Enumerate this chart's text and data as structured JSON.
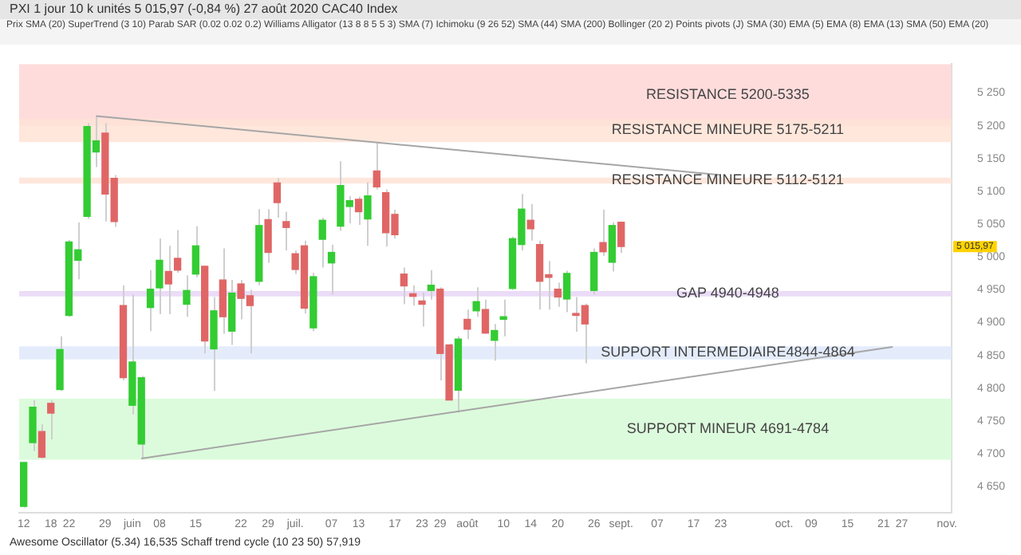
{
  "chart_data": {
    "type": "candlestick",
    "title": "PXI  1 jour  10 k unités  5 015,97 (-0,84 %) 27 août 2020  CAC40 Index",
    "subtitle": "Prix  SMA (20)  SuperTrend (3 10)  Parab SAR (0.02 0.02 0.2)  Williams Alligator (13 8 8 5 5 3)  SMA (7)  Ichimoku (9 26 52)  SMA (44)  SMA (200)  Bollinger (20 2)  Points pivots (J)  SMA (30)  EMA (5)  EMA (8)  EMA (13)  SMA (50)  EMA (20)",
    "annotations": [
      "Awesome Oscillator (5.34) 16,535  Schaff trend cycle (10 23 50) 57,919",
      "5 015,97"
    ],
    "categories": [
      "12",
      null,
      null,
      "18",
      null,
      "22",
      null,
      null,
      null,
      "29",
      null,
      null,
      "juin",
      null,
      null,
      "08",
      null,
      null,
      null,
      "15",
      null,
      null,
      null,
      null,
      "22",
      null,
      null,
      "29",
      null,
      null,
      "juil.",
      null,
      null,
      null,
      "07",
      null,
      null,
      "13",
      null,
      null,
      null,
      "17",
      null,
      null,
      "23",
      null,
      "29",
      null,
      null,
      "août",
      null,
      null,
      null,
      "10",
      null,
      null,
      "14",
      null,
      null,
      "20",
      null,
      null,
      null,
      "26",
      null,
      null,
      "sept.",
      null,
      null,
      null,
      "07",
      null,
      null,
      null,
      "17",
      null,
      null,
      "23",
      null,
      null,
      null,
      null,
      null,
      null,
      "oct.",
      null,
      null,
      "09",
      null,
      null,
      null,
      "15",
      null,
      null,
      null,
      "21",
      null,
      "27",
      null,
      null,
      null,
      null,
      "nov."
    ],
    "series": [
      {
        "type": "candlestick",
        "ohlc": [
          [
            4620,
            4687,
            4618,
            4687
          ],
          [
            4717,
            4782,
            4704,
            4771
          ],
          [
            4734,
            4745,
            4693,
            4695
          ],
          [
            4777,
            4782,
            4722,
            4762
          ],
          [
            4798,
            4879,
            4796,
            4859
          ],
          [
            4911,
            5026,
            4909,
            5023
          ],
          [
            4995,
            5053,
            4966,
            5011
          ],
          [
            5062,
            5204,
            5058,
            5199
          ],
          [
            5160,
            5215,
            5137,
            5177
          ],
          [
            5189,
            5204,
            5054,
            5096
          ],
          [
            5120,
            5125,
            5046,
            5054
          ],
          [
            4926,
            4957,
            4812,
            4816
          ],
          [
            4774,
            4943,
            4760,
            4840
          ],
          [
            4715,
            4819,
            4693,
            4816
          ],
          [
            4923,
            4980,
            4887,
            4951
          ],
          [
            4953,
            5028,
            4913,
            4995
          ],
          [
            4978,
            5017,
            4913,
            4959
          ],
          [
            4998,
            5041,
            4976,
            4980
          ],
          [
            4928,
            4972,
            4909,
            4949
          ],
          [
            4974,
            5047,
            4969,
            5017
          ],
          [
            4986,
            4987,
            4853,
            4872
          ],
          [
            4860,
            4939,
            4796,
            4918
          ],
          [
            4965,
            5013,
            4883,
            4909
          ],
          [
            4887,
            4965,
            4866,
            4945
          ],
          [
            4959,
            4965,
            4905,
            4937
          ],
          [
            4941,
            4950,
            4853,
            4926
          ],
          [
            4963,
            5073,
            4957,
            5048
          ],
          [
            5057,
            5073,
            4991,
            5007
          ],
          [
            5113,
            5120,
            5060,
            5083
          ],
          [
            5054,
            5069,
            5010,
            5045
          ],
          [
            5005,
            5010,
            4974,
            4981
          ],
          [
            5017,
            5025,
            4914,
            4922
          ],
          [
            4892,
            4976,
            4887,
            4970
          ],
          [
            5027,
            5060,
            4984,
            5056
          ],
          [
            4991,
            5019,
            4943,
            5007
          ],
          [
            5047,
            5146,
            5040,
            5109
          ],
          [
            5077,
            5093,
            5051,
            5086
          ],
          [
            5088,
            5092,
            5049,
            5069
          ],
          [
            5058,
            5114,
            5017,
            5093
          ],
          [
            5131,
            5175,
            5103,
            5107
          ],
          [
            5098,
            5103,
            5016,
            5037
          ],
          [
            5065,
            5072,
            5028,
            5034
          ],
          [
            4974,
            4984,
            4928,
            4956
          ],
          [
            4944,
            4957,
            4926,
            4940
          ],
          [
            4933,
            4946,
            4894,
            4928
          ],
          [
            4949,
            4980,
            4935,
            4957
          ],
          [
            4951,
            4954,
            4812,
            4853
          ],
          [
            4866,
            4868,
            4782,
            4782
          ],
          [
            4797,
            4879,
            4763,
            4875
          ],
          [
            4905,
            4920,
            4875,
            4890
          ],
          [
            4918,
            4954,
            4909,
            4932
          ],
          [
            4920,
            4935,
            4883,
            4884
          ],
          [
            4873,
            4898,
            4842,
            4888
          ],
          [
            4905,
            4935,
            4879,
            4909
          ],
          [
            4952,
            5031,
            4950,
            5028
          ],
          [
            5019,
            5096,
            5010,
            5073
          ],
          [
            5056,
            5081,
            5025,
            5043
          ],
          [
            5019,
            5025,
            4920,
            4963
          ],
          [
            4973,
            4994,
            4920,
            4969
          ],
          [
            4951,
            4961,
            4924,
            4939
          ],
          [
            4936,
            4979,
            4916,
            4975
          ],
          [
            4914,
            4939,
            4886,
            4911
          ],
          [
            4926,
            4929,
            4838,
            4898
          ],
          [
            4949,
            5013,
            4943,
            5007
          ],
          [
            5022,
            5072,
            5002,
            5008
          ],
          [
            4992,
            5053,
            4978,
            5048
          ],
          [
            5053,
            5054,
            5006,
            5015.97
          ],
          null,
          null,
          null,
          null,
          null,
          null,
          null,
          null,
          null,
          null,
          null,
          null,
          null,
          null,
          null,
          null,
          null,
          null,
          null,
          null,
          null,
          null,
          null,
          null,
          null,
          null,
          null,
          null,
          null,
          null,
          null,
          null,
          null,
          null,
          null,
          null
        ],
        "colors": [
          "#33cc33",
          "#33cc33",
          "#e06666",
          "#e06666",
          "#33cc33",
          "#33cc33",
          "#33cc33",
          "#33cc33",
          "#33cc33",
          "#e06666",
          "#e06666",
          "#e06666",
          "#33cc33",
          "#33cc33",
          "#33cc33",
          "#33cc33",
          "#e06666",
          "#e06666",
          "#33cc33",
          "#33cc33",
          "#e06666",
          "#33cc33",
          "#e06666",
          "#33cc33",
          "#e06666",
          "#e06666",
          "#33cc33",
          "#e06666",
          "#e06666",
          "#e06666",
          "#e06666",
          "#e06666",
          "#33cc33",
          "#33cc33",
          "#33cc33",
          "#33cc33",
          "#33cc33",
          "#e06666",
          "#33cc33",
          "#e06666",
          "#e06666",
          "#e06666",
          "#e06666",
          "#e06666",
          "#e06666",
          "#33cc33",
          "#e06666",
          "#e06666",
          "#33cc33",
          "#e06666",
          "#33cc33",
          "#e06666",
          "#33cc33",
          "#33cc33",
          "#33cc33",
          "#33cc33",
          "#e06666",
          "#e06666",
          "#e06666",
          "#e06666",
          "#33cc33",
          "#e06666",
          "#e06666",
          "#33cc33",
          "#e06666",
          "#33cc33",
          "#e06666",
          null,
          null,
          null,
          null,
          null,
          null,
          null,
          null,
          null,
          null,
          null,
          null,
          null,
          null,
          null,
          null,
          null,
          null,
          null,
          null,
          null,
          null,
          null,
          null,
          null,
          null,
          null,
          null,
          null,
          null,
          null,
          null,
          null,
          null,
          null,
          null
        ]
      },
      {
        "type": "line",
        "color": "#a6a6a6",
        "values": [
          null,
          null,
          null,
          null,
          null,
          null,
          null,
          null,
          5215,
          null,
          null,
          null,
          null,
          null,
          null,
          null,
          null,
          null,
          null,
          null,
          null,
          null,
          null,
          null,
          null,
          null,
          null,
          null,
          null,
          null,
          null,
          null,
          null,
          null,
          null,
          null,
          null,
          null,
          null,
          null,
          null,
          null,
          null,
          null,
          null,
          null,
          null,
          null,
          null,
          null,
          null,
          null,
          null,
          null,
          null,
          null,
          null,
          null,
          null,
          null,
          null,
          null,
          null,
          null,
          null,
          null,
          null,
          null,
          null,
          null,
          null,
          null,
          null,
          null,
          null,
          null,
          null,
          5125,
          null,
          null,
          null,
          null,
          null,
          null,
          null,
          null,
          null,
          null,
          null,
          null,
          null,
          null,
          null,
          null,
          null,
          null,
          null,
          null,
          null,
          null,
          null,
          null,
          null
        ]
      },
      {
        "type": "line",
        "color": "#a6a6a6",
        "values": [
          null,
          null,
          null,
          null,
          null,
          null,
          null,
          null,
          null,
          null,
          null,
          null,
          null,
          4693,
          null,
          null,
          null,
          null,
          null,
          null,
          null,
          null,
          null,
          null,
          null,
          null,
          null,
          null,
          null,
          null,
          null,
          null,
          null,
          null,
          null,
          null,
          null,
          null,
          null,
          null,
          null,
          null,
          null,
          null,
          null,
          null,
          null,
          null,
          null,
          null,
          null,
          null,
          null,
          null,
          null,
          null,
          null,
          null,
          null,
          null,
          null,
          null,
          null,
          null,
          null,
          null,
          null,
          null,
          null,
          null,
          null,
          null,
          null,
          null,
          null,
          null,
          null,
          null,
          null,
          null,
          null,
          null,
          null,
          null,
          null,
          null,
          null,
          null,
          null,
          null,
          null,
          null,
          null,
          null,
          null,
          null,
          4863,
          null,
          null,
          null,
          null,
          null,
          null
        ]
      }
    ],
    "bands": [
      {
        "axis": "y",
        "from": 5200,
        "to": 5335,
        "label": "RESISTANCE 5200-5335",
        "color": "#ffd6d6"
      },
      {
        "axis": "y",
        "from": 5175,
        "to": 5211,
        "label": "RESISTANCE MINEURE 5175-5211",
        "color": "#ffe3d6"
      },
      {
        "axis": "y",
        "from": 5112,
        "to": 5121,
        "label": "RESISTANCE MINEURE 5112-5121",
        "color": "#ffe3d6"
      },
      {
        "axis": "y",
        "from": 4940,
        "to": 4948,
        "label": "GAP 4940-4948",
        "color": "#e8d6f7"
      },
      {
        "axis": "y",
        "from": 4844,
        "to": 4864,
        "label": "SUPPORT INTERMEDIAIRE4844-4864",
        "color": "#dfe9fc"
      },
      {
        "axis": "y",
        "from": 4691,
        "to": 4784,
        "label": "SUPPORT MINEUR 4691-4784",
        "color": "#d6fad6"
      }
    ],
    "ylim": [
      4610,
      5294
    ],
    "yticks": [
      {
        "value": 4650,
        "label": "4 650"
      },
      {
        "value": 4700,
        "label": "4 700"
      },
      {
        "value": 4750,
        "label": "4 750"
      },
      {
        "value": 4800,
        "label": "4 800"
      },
      {
        "value": 4850,
        "label": "4 850"
      },
      {
        "value": 4900,
        "label": "4 900"
      },
      {
        "value": 4950,
        "label": "4 950"
      },
      {
        "value": 5000,
        "label": "5 000"
      },
      {
        "value": 5050,
        "label": "5 050"
      },
      {
        "value": 5100,
        "label": "5 100"
      },
      {
        "value": 5150,
        "label": "5 150"
      },
      {
        "value": 5200,
        "label": "5 200"
      },
      {
        "value": 5250,
        "label": "5 250"
      }
    ],
    "grid": false,
    "legend": false,
    "marker": "none"
  }
}
